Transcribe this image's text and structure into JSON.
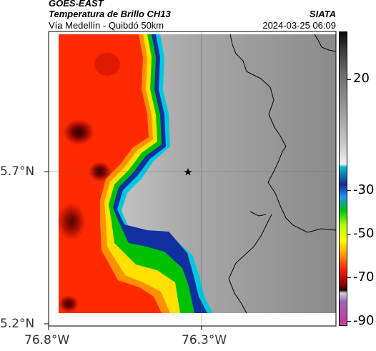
{
  "header": {
    "satellite": "GOES-EAST",
    "product": "Temperatura de Brillo CH13",
    "region": "Vía Medellín - Quibdó 50km",
    "agency": "SIATA",
    "timestamp": "2024-03-25 06:09"
  },
  "axes": {
    "y_ticks": [
      {
        "label": "5.7°N"
      },
      {
        "label": "5.2°N"
      }
    ],
    "x_ticks": [
      {
        "label": "76.8°W"
      },
      {
        "label": "76.3°W"
      }
    ]
  },
  "colorbar": {
    "ticks": [
      {
        "label": "20"
      },
      {
        "label": "-30"
      },
      {
        "label": "-50"
      },
      {
        "label": "-70"
      },
      {
        "label": "-90"
      }
    ]
  },
  "map": {
    "marker": "star-marker",
    "colors": {
      "cold_red": "#ff2a00",
      "dark_red": "#5a0000",
      "warm_gray": "#b8b8b8",
      "edge_blue": "#1030a0",
      "cyan": "#00c8e0",
      "green": "#00d000",
      "yellow": "#ffe000"
    }
  }
}
